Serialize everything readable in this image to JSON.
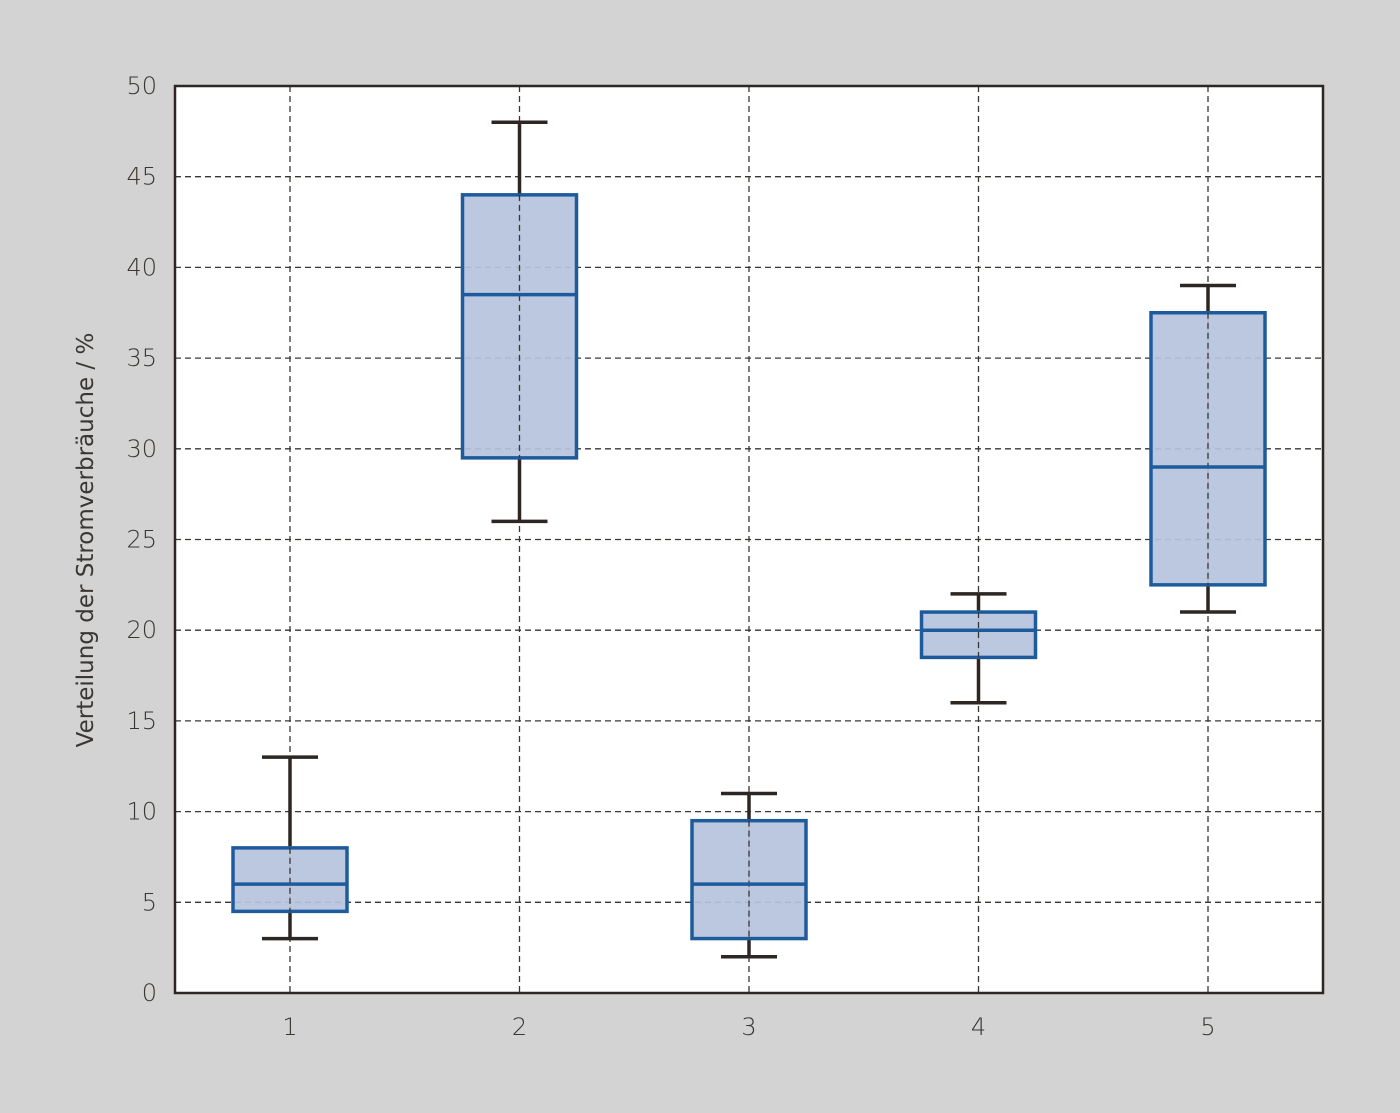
{
  "chart_data": {
    "type": "boxplot",
    "title": "",
    "xlabel": "",
    "ylabel": "Verteilung der Stromverbräuche / %",
    "ylim": [
      0,
      50
    ],
    "yticks": [
      0,
      5,
      10,
      15,
      20,
      25,
      30,
      35,
      40,
      45,
      50
    ],
    "categories": [
      "1",
      "2",
      "3",
      "4",
      "5"
    ],
    "grid": true,
    "grid_style": "dashed",
    "boxes": [
      {
        "category": "1",
        "whisker_low": 3,
        "q1": 4.5,
        "median": 6,
        "q3": 8,
        "whisker_high": 13
      },
      {
        "category": "2",
        "whisker_low": 26,
        "q1": 29.5,
        "median": 38.5,
        "q3": 44,
        "whisker_high": 48
      },
      {
        "category": "3",
        "whisker_low": 2,
        "q1": 3,
        "median": 6,
        "q3": 9.5,
        "whisker_high": 11
      },
      {
        "category": "4",
        "whisker_low": 16,
        "q1": 18.5,
        "median": 20,
        "q3": 21,
        "whisker_high": 22
      },
      {
        "category": "5",
        "whisker_low": 21,
        "q1": 22.5,
        "median": 29,
        "q3": 37.5,
        "whisker_high": 39
      }
    ],
    "colors": {
      "background": "#d3d3d3",
      "plot_background": "#ffffff",
      "box_fill": "#b6c3dc",
      "box_edge": "#1e5b9c",
      "whisker": "#2d2622",
      "grid": "#3a3632",
      "axis": "#2d2622"
    }
  }
}
